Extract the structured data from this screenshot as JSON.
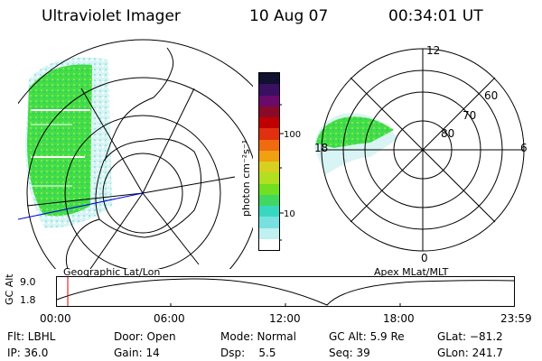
{
  "header": {
    "title": "Ultraviolet Imager",
    "date": "10 Aug 07",
    "time": "00:34:01 UT"
  },
  "colorbar": {
    "label": "photon cm⁻²s⁻¹",
    "tick_100": "100",
    "tick_10": "10",
    "colors": [
      "#101030",
      "#3a1060",
      "#6a0a6a",
      "#8a0a2a",
      "#c00000",
      "#e03010",
      "#f06a10",
      "#f0a010",
      "#d8d020",
      "#b0e020",
      "#70e020",
      "#40d860",
      "#38d8c0",
      "#78e0e0",
      "#c0f0f0",
      "#ffffff"
    ]
  },
  "left_map": {
    "caption": "Geographic Lat/Lon"
  },
  "right_map": {
    "caption": "Apex MLat/MLT",
    "mlt_labels": {
      "top": "12",
      "left": "18",
      "right": "6",
      "bottom": "0"
    },
    "lat_labels": [
      "60",
      "70",
      "80"
    ]
  },
  "altitude_plot": {
    "ylabel": "GC Alt",
    "y_top": "9.0",
    "y_bottom": "1.8",
    "ymin": 1.8,
    "ymax": 9.0,
    "current_time_hours": 0.57,
    "x_ticks": [
      "00:00",
      "06:00",
      "12:00",
      "18:00",
      "23:59"
    ]
  },
  "status": {
    "filter": "Flt: LBHL",
    "ip": "IP: 36.0",
    "door": "Door: Open",
    "gain": "Gain: 14",
    "mode": "Mode: Normal",
    "dsp": "Dsp:    5.5",
    "gc_alt": "GC Alt: 5.9 Re",
    "seq": "Seq: 39",
    "glat": "GLat: −81.2",
    "glon": "GLon: 241.7"
  }
}
